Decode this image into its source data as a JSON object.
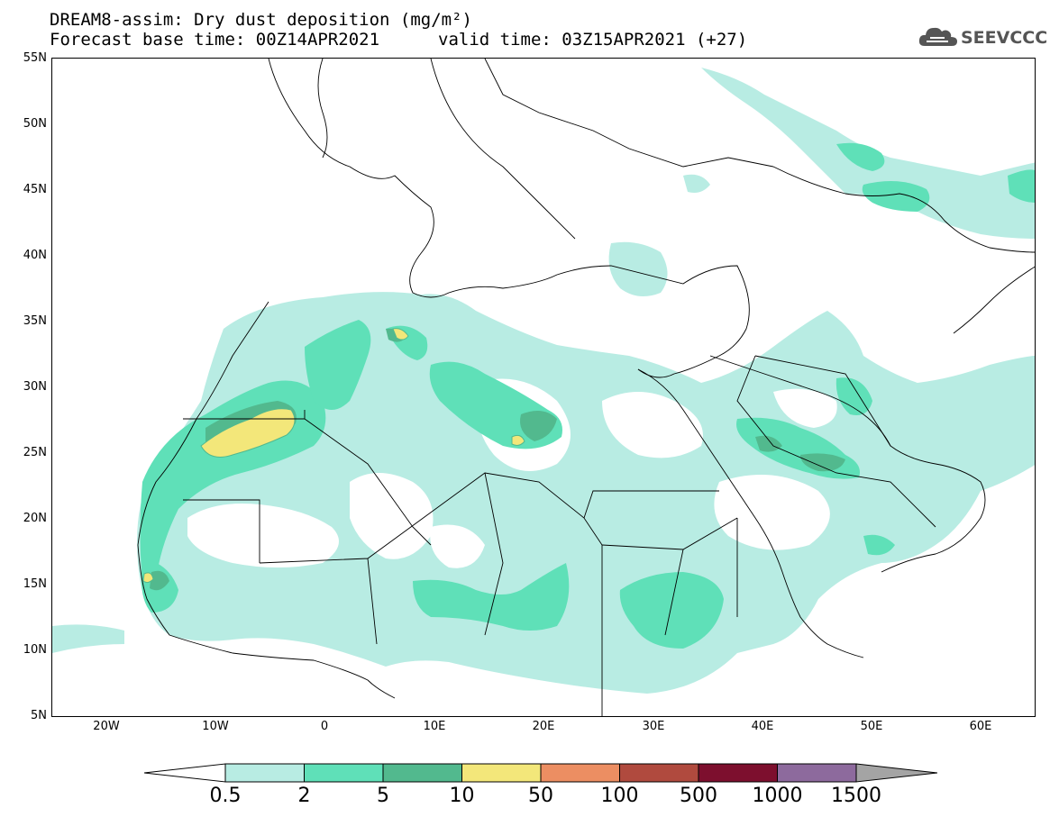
{
  "header": {
    "title_line1": "DREAM8-assim: Dry dust deposition (mg/m²)",
    "title_line2": "Forecast base time: 00Z14APR2021",
    "valid_time": "valid time: 03Z15APR2021 (+27)"
  },
  "logo": {
    "text": "SEEVCCC",
    "icon": "cloud-icon"
  },
  "map": {
    "projection": "lat-lon",
    "lon_range": [
      -25,
      65
    ],
    "lat_range": [
      5,
      55
    ],
    "lat_labels": [
      "55N",
      "50N",
      "45N",
      "40N",
      "35N",
      "30N",
      "25N",
      "20N",
      "15N",
      "10N",
      "5N"
    ],
    "lon_labels": [
      "20W",
      "10W",
      "0",
      "10E",
      "20E",
      "30E",
      "40E",
      "50E",
      "60E"
    ]
  },
  "legend": {
    "levels": [
      "0.5",
      "2",
      "5",
      "10",
      "50",
      "100",
      "500",
      "1000",
      "1500"
    ],
    "colors": [
      "#ffffff",
      "#b8ece3",
      "#5fe0b8",
      "#52b98e",
      "#f3e77a",
      "#ec8e62",
      "#b04a3e",
      "#7d0f2e",
      "#8d6a9d",
      "#a4a4a4"
    ]
  }
}
